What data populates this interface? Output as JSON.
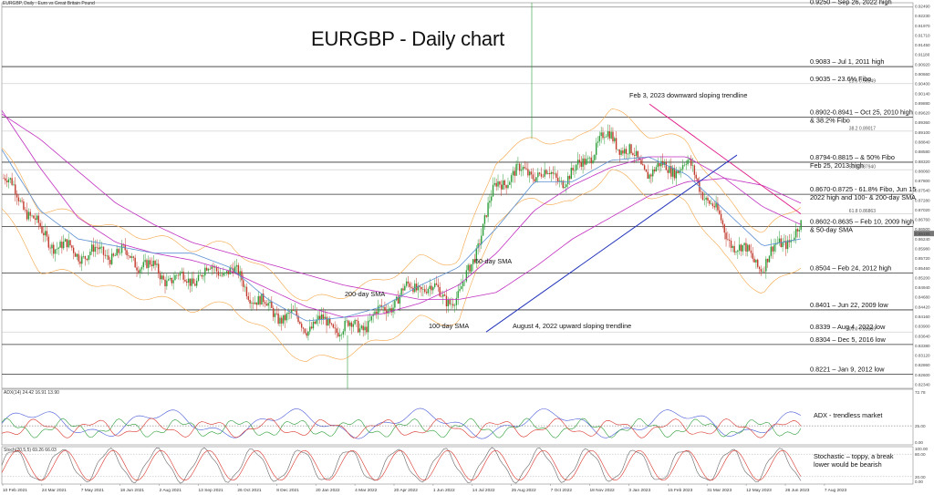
{
  "header": {
    "symbol_label": "EURGBP, Daily : Euro vs Great Britain Pound",
    "big_title": "EURGBP - Daily chart"
  },
  "chart_data": [
    {
      "type": "line",
      "title": "EURGBP - Daily chart",
      "ylim": [
        0.8181,
        0.9262
      ],
      "price_ticks": [
        "0.92490",
        "0.92230",
        "0.91970",
        "0.91710",
        "0.91450",
        "0.91180",
        "0.90920",
        "0.90660",
        "0.90400",
        "0.90140",
        "0.89880",
        "0.89620",
        "0.89360",
        "0.89100",
        "0.88840",
        "0.88580",
        "0.88320",
        "0.88060",
        "0.87800",
        "0.87540",
        "0.87280",
        "0.87020",
        "0.86760",
        "0.86500",
        "0.86240",
        "0.85980",
        "0.85720",
        "0.85460",
        "0.85200",
        "0.84940",
        "0.84680",
        "0.84420",
        "0.84160",
        "0.83900",
        "0.83640",
        "0.83380",
        "0.83120",
        "0.82860",
        "0.82600",
        "0.82340"
      ],
      "current_price": "0.86155",
      "x_labels": [
        "10 Feb 2021",
        "24 Mar 2021",
        "7 May 2021",
        "18 Jun 2021",
        "2 Aug 2021",
        "13 Sep 2021",
        "26 Oct 2021",
        "8 Dec 2021",
        "20 Jan 2022",
        "4 Mar 2022",
        "20 Apr 2022",
        "1 Jun 2022",
        "14 Jul 2022",
        "25 Aug 2022",
        "7 Oct 2022",
        "18 Nov 2022",
        "3 Jan 2023",
        "15 Feb 2023",
        "31 Mar 2023",
        "12 May 2023",
        "26 Jun 2023",
        "7 Aug 2023"
      ],
      "levels": [
        {
          "y": 0.925,
          "label": "0.9250 – Sep 26, 2022 high",
          "color": "#999999"
        },
        {
          "y": 0.9083,
          "label": "0.9083 – Jul 1, 2011 high",
          "color": "#333333"
        },
        {
          "y": 0.9035,
          "label": "0.9035 – 23.6% Fibo",
          "color": "#bbbbbb",
          "fibo_tag": "23.6 0.90349"
        },
        {
          "y": 0.8941,
          "label": "0.8902-0.8941 – Oct 25, 2010 high\n& 38.2% Fibo",
          "color": "#333333"
        },
        {
          "y": 0.8902,
          "color": "#bbbbbb",
          "fibo_tag": "38.2 0.89017"
        },
        {
          "y": 0.8815,
          "label": "0.8794-0.8815 – & 50% Fibo\nFeb 25, 2013 high",
          "color": "#333333"
        },
        {
          "y": 0.8794,
          "color": "#bbbbbb",
          "fibo_tag": "50.0 0.87940"
        },
        {
          "y": 0.8725,
          "label": "0.8670-0.8725 - 61.8% Fibo, Jun 15\n2022 high and 100- & 200-day SMA",
          "color": "#333333"
        },
        {
          "y": 0.867,
          "color": "#bbbbbb",
          "fibo_tag": "61.8 0.86863"
        },
        {
          "y": 0.8635,
          "label": "0.8602-0.8635 – Feb 10, 2009 high\n& 50-day SMA",
          "color": "#333333"
        },
        {
          "y": 0.8504,
          "label": "0.8504 – Feb 24, 2012 high",
          "color": "#333333"
        },
        {
          "y": 0.8401,
          "label": "0.8401 – Jun 22, 2009 low",
          "color": "#333333"
        },
        {
          "y": 0.8339,
          "label": "0.8339 – Aug 4, 2022 low",
          "color": "#bbbbbb",
          "fibo_tag": "100.0 0.83389"
        },
        {
          "y": 0.8304,
          "label": "0.8304 – Dec 5, 2016 low",
          "color": "#333333"
        },
        {
          "y": 0.8221,
          "label": "0.8221 – Jan 9, 2012 low",
          "color": "#333333"
        }
      ],
      "annotations": [
        {
          "text": "Feb 3, 2023 downward sloping trendline",
          "color": "#e0218a"
        },
        {
          "text": "August 4, 2022 upward sloping trendline",
          "color": "#2233bb"
        },
        {
          "text": "200-day SMA",
          "color": "#c030c0"
        },
        {
          "text": "100-day SMA",
          "color": "#c030c0"
        },
        {
          "text": "50-day SMA",
          "color": "#5b8fd1"
        }
      ],
      "trendlines": [
        {
          "name": "Feb 3, 2023 downward sloping trendline",
          "color": "#e0218a",
          "from": {
            "x": "3 Feb 2023",
            "y": 0.8978
          },
          "to": {
            "x": "19 Jul 2023",
            "y": 0.867
          }
        },
        {
          "name": "August 4, 2022 upward sloping trendline",
          "color": "#2233bb",
          "from": {
            "x": "4 Aug 2022",
            "y": 0.8339
          },
          "to": {
            "x": "25 Apr 2023",
            "y": 0.8835
          }
        }
      ],
      "series": [
        {
          "name": "200-day SMA",
          "color": "#c030c0",
          "values": [
            0.895,
            0.888,
            0.879,
            0.87,
            0.864,
            0.859,
            0.856,
            0.853,
            0.85,
            0.847,
            0.845,
            0.843,
            0.843,
            0.845,
            0.852,
            0.86,
            0.866,
            0.872,
            0.876,
            0.877,
            0.875,
            0.87
          ]
        },
        {
          "name": "100-day SMA",
          "color": "#c030c0",
          "values": [
            0.896,
            0.88,
            0.866,
            0.859,
            0.856,
            0.854,
            0.851,
            0.846,
            0.841,
            0.838,
            0.839,
            0.842,
            0.847,
            0.856,
            0.868,
            0.875,
            0.88,
            0.883,
            0.883,
            0.877,
            0.869,
            0.864
          ]
        },
        {
          "name": "50-day SMA",
          "color": "#5b8fd1",
          "values": [
            0.885,
            0.868,
            0.86,
            0.858,
            0.856,
            0.856,
            0.852,
            0.843,
            0.837,
            0.838,
            0.841,
            0.847,
            0.852,
            0.863,
            0.876,
            0.876,
            0.882,
            0.883,
            0.878,
            0.868,
            0.858,
            0.86
          ]
        },
        {
          "name": "price",
          "color": "#333333",
          "values": [
            0.877,
            0.86,
            0.858,
            0.854,
            0.852,
            0.849,
            0.85,
            0.842,
            0.834,
            0.836,
            0.84,
            0.846,
            0.845,
            0.874,
            0.88,
            0.878,
            0.888,
            0.881,
            0.879,
            0.863,
            0.853,
            0.8615
          ]
        }
      ]
    },
    {
      "type": "line",
      "title": "ADX(14) 24.42 16.91 13.90",
      "ylim": [
        0,
        73.0
      ],
      "ticks": [
        "72.78",
        "25.00",
        "0.00"
      ],
      "annotation": "ADX - trendless market"
    },
    {
      "type": "line",
      "title": "Stoch(20,5,5) 69.26 66.03",
      "ylim": [
        0,
        100
      ],
      "ticks": [
        "100.00",
        "80.00",
        "20.00",
        "0.00"
      ],
      "annotation": "Stochastic – toppy, a break\nlower would be bearish"
    }
  ]
}
